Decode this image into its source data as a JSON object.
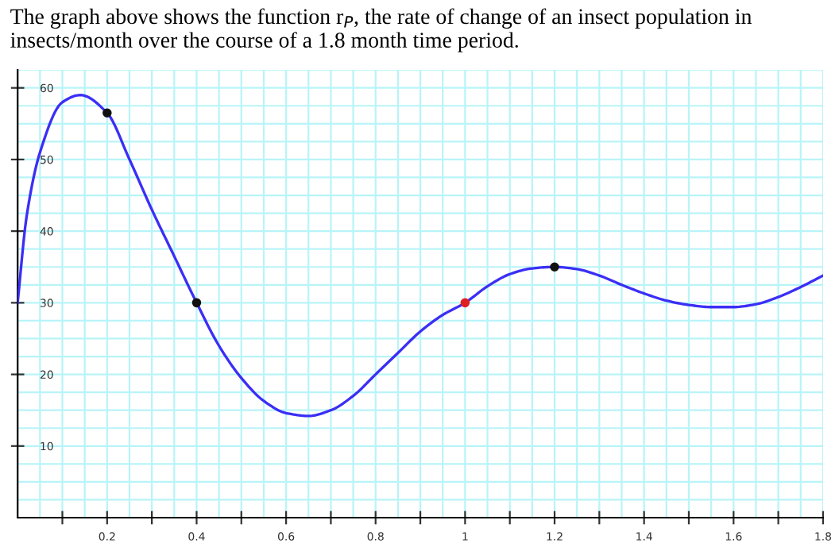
{
  "chart_data": {
    "type": "line",
    "title": "The graph above shows the function r$_{P}$, the rate of change of an insect population in insects/month over the course of a 1.8 month time period.",
    "series": [
      {
        "color": "#3b2ff5",
        "x": [
          0,
          0.02,
          0.05,
          0.1,
          0.14,
          0.2,
          0.25,
          0.3,
          0.35,
          0.4,
          0.45,
          0.5,
          0.55,
          0.6,
          0.65,
          0.7,
          0.75,
          0.8,
          0.85,
          0.9,
          0.95,
          1.0,
          1.05,
          1.1,
          1.15,
          1.2,
          1.25,
          1.3,
          1.35,
          1.4,
          1.45,
          1.5,
          1.55,
          1.6,
          1.65,
          1.7,
          1.75,
          1.8
        ],
        "values": [
          30,
          42,
          51,
          58,
          59,
          56.5,
          50,
          43,
          36.5,
          30,
          24,
          19.5,
          16.3,
          14.6,
          14.2,
          15,
          17,
          20,
          23,
          26,
          28.3,
          30,
          32.3,
          34,
          34.8,
          35,
          34.7,
          33.8,
          32.5,
          31.3,
          30.3,
          29.7,
          29.4,
          29.4,
          29.8,
          30.8,
          32.2,
          33.8
        ]
      },
      {
        "type": "scatter",
        "marker": "circle",
        "colors": [
          "#111111",
          "#111111",
          "#e02020",
          "#111111"
        ],
        "x": [
          0.2,
          0.4,
          1.0,
          1.2
        ],
        "values": [
          56.5,
          30,
          30,
          35
        ]
      }
    ],
    "xlim": [
      0,
      1.8
    ],
    "ylim": [
      0,
      62.5
    ],
    "xticks": [
      {
        "value": 0.1,
        "label": null
      },
      0.2,
      {
        "value": 0.3,
        "label": null
      },
      0.4,
      {
        "value": 0.5,
        "label": null
      },
      0.6,
      {
        "value": 0.7,
        "label": null
      },
      0.8,
      {
        "value": 0.9,
        "label": null
      },
      1,
      {
        "value": 1.1,
        "label": null
      },
      1.2,
      {
        "value": 1.3,
        "label": null
      },
      1.4,
      {
        "value": 1.5,
        "label": null
      },
      1.6,
      {
        "value": 1.7,
        "label": null
      },
      1.8
    ],
    "yticks": [
      10,
      20,
      30,
      40,
      50,
      60
    ],
    "grid": true,
    "marker": "none",
    "line_style": "solid"
  }
}
